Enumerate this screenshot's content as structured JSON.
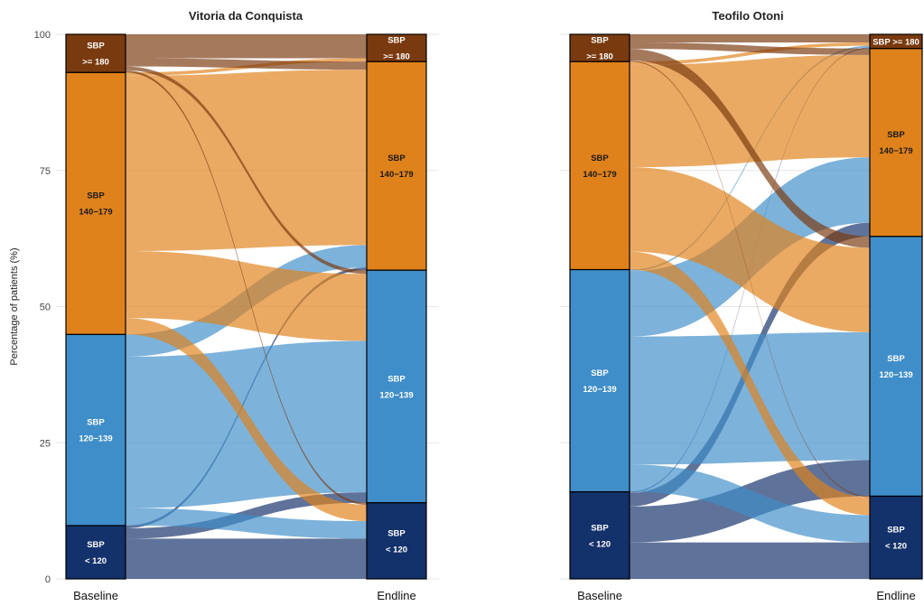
{
  "chart_data": {
    "type": "alluvial",
    "ylabel": "Percentage of patients (%)",
    "y_ticks": [
      "0",
      "25",
      "50",
      "75",
      "100"
    ],
    "ylim": [
      0,
      100
    ],
    "grid": true,
    "category_colors": {
      "SBP >= 180": "#7a3a0f",
      "SBP 140-179": "#e0821b",
      "SBP 120-139": "#3f8ec9",
      "SBP < 120": "#13316a"
    },
    "panels": [
      {
        "title": "Vitoria da Conquista",
        "axes": [
          "Baseline",
          "Endline"
        ],
        "stages": [
          {
            "name": "Baseline",
            "nodes": [
              {
                "id": "lt120",
                "label": [
                  "SBP",
                  "< 120"
                ],
                "value": 9.8
              },
              {
                "id": "c120",
                "label": [
                  "SBP",
                  "120−139"
                ],
                "value": 35.1
              },
              {
                "id": "c140",
                "label": [
                  "SBP",
                  "140−179"
                ],
                "value": 48.1
              },
              {
                "id": "ge180",
                "label": [
                  "SBP",
                  ">= 180"
                ],
                "value": 7.0
              }
            ]
          },
          {
            "name": "Endline",
            "nodes": [
              {
                "id": "lt120",
                "label": [
                  "SBP",
                  "< 120"
                ],
                "value": 14.0
              },
              {
                "id": "c120",
                "label": [
                  "SBP",
                  "120−139"
                ],
                "value": 42.7
              },
              {
                "id": "c140",
                "label": [
                  "SBP",
                  "140−179"
                ],
                "value": 38.3
              },
              {
                "id": "ge180",
                "label": [
                  "SBP",
                  ">= 180"
                ],
                "value": 5.0
              }
            ]
          }
        ],
        "flows": [
          {
            "from": "lt120",
            "to": "lt120",
            "value": 7.4
          },
          {
            "from": "lt120",
            "to": "c120",
            "value": 1.9
          },
          {
            "from": "lt120",
            "to": "c140",
            "value": 0.5
          },
          {
            "from": "c120",
            "to": "lt120",
            "value": 3.2
          },
          {
            "from": "c120",
            "to": "c120",
            "value": 27.8
          },
          {
            "from": "c120",
            "to": "c140",
            "value": 4.1
          },
          {
            "from": "c140",
            "to": "lt120",
            "value": 3.0
          },
          {
            "from": "c140",
            "to": "c120",
            "value": 12.3
          },
          {
            "from": "c140",
            "to": "c140",
            "value": 32.2
          },
          {
            "from": "c140",
            "to": "ge180",
            "value": 0.6
          },
          {
            "from": "ge180",
            "to": "lt120",
            "value": 0.4
          },
          {
            "from": "ge180",
            "to": "c120",
            "value": 0.7
          },
          {
            "from": "ge180",
            "to": "c140",
            "value": 1.5
          },
          {
            "from": "ge180",
            "to": "ge180",
            "value": 4.4
          }
        ]
      },
      {
        "title": "Teofilo Otoni",
        "axes": [
          "Baseline",
          "Endline"
        ],
        "stages": [
          {
            "name": "Baseline",
            "nodes": [
              {
                "id": "lt120",
                "label": [
                  "SBP",
                  "< 120"
                ],
                "value": 16.0
              },
              {
                "id": "c120",
                "label": [
                  "SBP",
                  "120−139"
                ],
                "value": 40.8
              },
              {
                "id": "c140",
                "label": [
                  "SBP",
                  "140−179"
                ],
                "value": 38.2
              },
              {
                "id": "ge180",
                "label": [
                  "SBP",
                  ">= 180"
                ],
                "value": 5.0
              }
            ]
          },
          {
            "name": "Endline",
            "nodes": [
              {
                "id": "lt120",
                "label": [
                  "SBP",
                  "< 120"
                ],
                "value": 15.2
              },
              {
                "id": "c120",
                "label": [
                  "SBP",
                  "120−139"
                ],
                "value": 47.7
              },
              {
                "id": "c140",
                "label": [
                  "SBP",
                  "140−179"
                ],
                "value": 34.5
              },
              {
                "id": "ge180",
                "label": [
                  "SBP >= 180"
                ],
                "value": 2.6
              }
            ]
          }
        ],
        "flows": [
          {
            "from": "lt120",
            "to": "lt120",
            "value": 6.7
          },
          {
            "from": "lt120",
            "to": "c120",
            "value": 6.6
          },
          {
            "from": "lt120",
            "to": "c140",
            "value": 2.5
          },
          {
            "from": "lt120",
            "to": "ge180",
            "value": 0.2
          },
          {
            "from": "c120",
            "to": "lt120",
            "value": 5.0
          },
          {
            "from": "c120",
            "to": "c120",
            "value": 23.5
          },
          {
            "from": "c120",
            "to": "c140",
            "value": 12.0
          },
          {
            "from": "c120",
            "to": "ge180",
            "value": 0.3
          },
          {
            "from": "c140",
            "to": "lt120",
            "value": 3.3
          },
          {
            "from": "c140",
            "to": "c120",
            "value": 15.5
          },
          {
            "from": "c140",
            "to": "c140",
            "value": 18.8
          },
          {
            "from": "c140",
            "to": "ge180",
            "value": 0.6
          },
          {
            "from": "ge180",
            "to": "lt120",
            "value": 0.2
          },
          {
            "from": "ge180",
            "to": "c120",
            "value": 2.1
          },
          {
            "from": "ge180",
            "to": "c140",
            "value": 1.2
          },
          {
            "from": "ge180",
            "to": "ge180",
            "value": 1.5
          }
        ]
      }
    ]
  }
}
